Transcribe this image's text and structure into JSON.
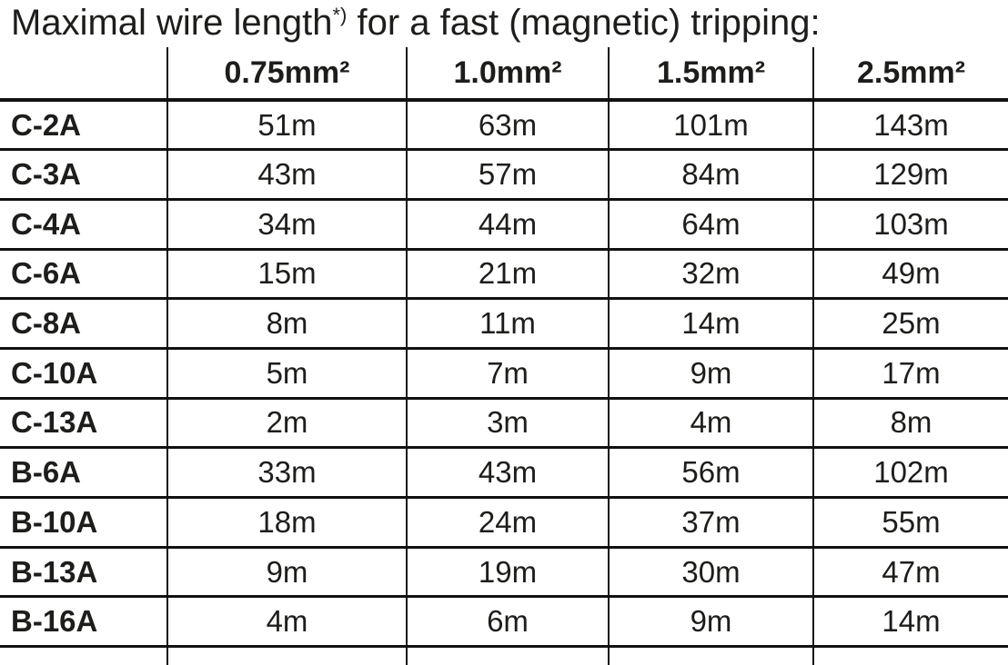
{
  "title": {
    "prefix": "Maximal wire length",
    "superscript": "*)",
    "suffix": " for a fast (magnetic) tripping:"
  },
  "table": {
    "column_headers": [
      "0.75mm²",
      "1.0mm²",
      "1.5mm²",
      "2.5mm²"
    ],
    "rows": [
      {
        "label": "C-2A",
        "values": [
          "51m",
          "63m",
          "101m",
          "143m"
        ]
      },
      {
        "label": "C-3A",
        "values": [
          "43m",
          "57m",
          "84m",
          "129m"
        ]
      },
      {
        "label": "C-4A",
        "values": [
          "34m",
          "44m",
          "64m",
          "103m"
        ]
      },
      {
        "label": "C-6A",
        "values": [
          "15m",
          "21m",
          "32m",
          "49m"
        ]
      },
      {
        "label": "C-8A",
        "values": [
          "8m",
          "11m",
          "14m",
          "25m"
        ]
      },
      {
        "label": "C-10A",
        "values": [
          "5m",
          "7m",
          "9m",
          "17m"
        ]
      },
      {
        "label": "C-13A",
        "values": [
          "2m",
          "3m",
          "4m",
          "8m"
        ]
      },
      {
        "label": "B-6A",
        "values": [
          "33m",
          "43m",
          "56m",
          "102m"
        ]
      },
      {
        "label": "B-10A",
        "values": [
          "18m",
          "24m",
          "37m",
          "55m"
        ]
      },
      {
        "label": "B-13A",
        "values": [
          "9m",
          "19m",
          "30m",
          "47m"
        ]
      },
      {
        "label": "B-16A",
        "values": [
          "4m",
          "6m",
          "9m",
          "14m"
        ]
      }
    ]
  },
  "colors": {
    "text": "#1d1d1b",
    "border": "#111111",
    "background": "#ffffff"
  }
}
